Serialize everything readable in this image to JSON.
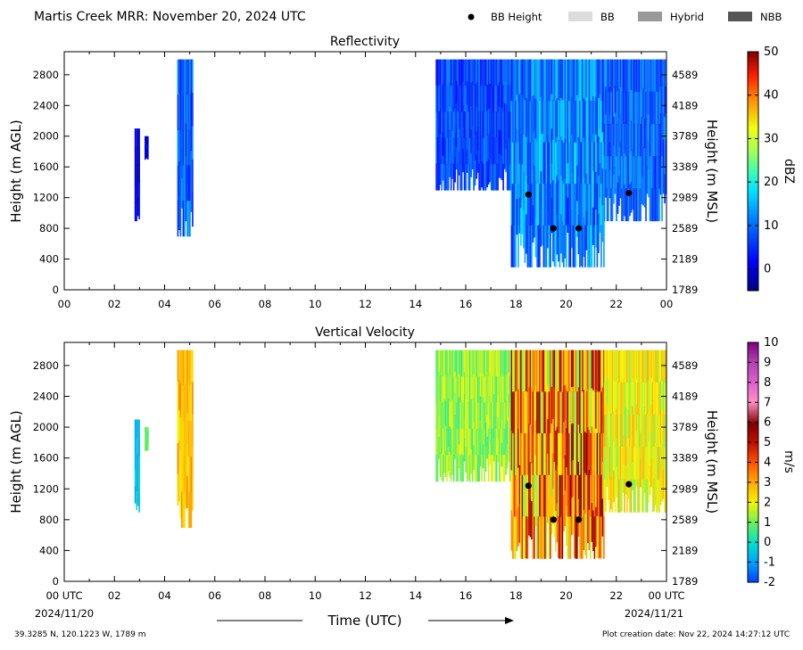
{
  "header": {
    "title": "Martis Creek MRR:  November 20, 2024 UTC",
    "legend": [
      {
        "label": "BB Height",
        "kind": "dot",
        "color": "#000000"
      },
      {
        "label": "BB",
        "kind": "patch",
        "color": "#dcdcdc"
      },
      {
        "label": "Hybrid",
        "kind": "patch",
        "color": "#999999"
      },
      {
        "label": "NBB",
        "kind": "patch",
        "color": "#555555"
      }
    ]
  },
  "footer": {
    "location": "39.3285 N, 120.1223 W, 1789 m",
    "created": "Plot creation date: Nov 22, 2024 14:27:12 UTC",
    "start_date": "2024/11/20",
    "end_date": "2024/11/21",
    "time_label": "Time (UTC)"
  },
  "chart_data": [
    {
      "type": "heatmap",
      "title": "Reflectivity",
      "ylabel": "Height (m AGL)",
      "ylabel_right": "Height (m MSL)",
      "xlim": [
        0,
        24
      ],
      "ylim": [
        0,
        3100
      ],
      "x_ticks": [
        "00",
        "02",
        "04",
        "06",
        "08",
        "10",
        "12",
        "14",
        "16",
        "18",
        "20",
        "22",
        "00"
      ],
      "y_ticks": [
        0,
        400,
        800,
        1200,
        1600,
        2000,
        2400,
        2800
      ],
      "y_ticks_right": [
        "1789",
        "2189",
        "2589",
        "2989",
        "3389",
        "3789",
        "4189",
        "4589"
      ],
      "colorbar": {
        "label": "dBZ",
        "min": -5,
        "max": 50,
        "ticks": [
          0,
          10,
          20,
          30,
          40,
          50
        ]
      },
      "echo_segments": [
        {
          "x_start": 2.8,
          "x_end": 3.0,
          "y_bottom": 900,
          "y_top": 2100,
          "value_range": [
            -3,
            3
          ]
        },
        {
          "x_start": 3.2,
          "x_end": 3.35,
          "y_bottom": 1700,
          "y_top": 2000,
          "value_range": [
            -3,
            3
          ]
        },
        {
          "x_start": 4.5,
          "x_end": 5.1,
          "y_bottom": 700,
          "y_top": 3000,
          "value_range": [
            3,
            14
          ]
        },
        {
          "x_start": 14.8,
          "x_end": 17.8,
          "y_bottom": 1300,
          "y_top": 3000,
          "value_range": [
            2,
            12
          ]
        },
        {
          "x_start": 17.8,
          "x_end": 21.5,
          "y_bottom": 300,
          "y_top": 3000,
          "value_range": [
            4,
            18
          ]
        },
        {
          "x_start": 21.5,
          "x_end": 24.0,
          "y_bottom": 900,
          "y_top": 3000,
          "value_range": [
            4,
            14
          ]
        }
      ],
      "bb_height": [
        {
          "x": 18.5,
          "y": 1240
        },
        {
          "x": 19.5,
          "y": 800
        },
        {
          "x": 20.5,
          "y": 800
        },
        {
          "x": 22.5,
          "y": 1260
        }
      ]
    },
    {
      "type": "heatmap",
      "title": "Vertical Velocity",
      "ylabel": "Height (m AGL)",
      "ylabel_right": "Height (m MSL)",
      "xlabel": "Time (UTC)",
      "xlim": [
        0,
        24
      ],
      "ylim": [
        0,
        3100
      ],
      "x_ticks": [
        "00 UTC",
        "02",
        "04",
        "06",
        "08",
        "10",
        "12",
        "14",
        "16",
        "18",
        "20",
        "22",
        "00 UTC"
      ],
      "y_ticks": [
        0,
        400,
        800,
        1200,
        1600,
        2000,
        2400,
        2800
      ],
      "y_ticks_right": [
        "1789",
        "2189",
        "2589",
        "2989",
        "3389",
        "3789",
        "4189",
        "4589"
      ],
      "colorbar": {
        "label": "m/s",
        "min": -2,
        "max": 10,
        "ticks": [
          -2,
          -1,
          0,
          1,
          2,
          3,
          4,
          5,
          6,
          7,
          8,
          9,
          10
        ]
      },
      "echo_segments": [
        {
          "x_start": 2.8,
          "x_end": 3.0,
          "y_bottom": 900,
          "y_top": 2100,
          "value_range": [
            -1,
            0
          ]
        },
        {
          "x_start": 3.2,
          "x_end": 3.35,
          "y_bottom": 1700,
          "y_top": 2000,
          "value_range": [
            0.5,
            1.2
          ]
        },
        {
          "x_start": 4.5,
          "x_end": 5.1,
          "y_bottom": 700,
          "y_top": 3000,
          "value_range": [
            2,
            3.5
          ]
        },
        {
          "x_start": 14.8,
          "x_end": 17.8,
          "y_bottom": 1300,
          "y_top": 3000,
          "value_range": [
            0.5,
            2
          ]
        },
        {
          "x_start": 17.8,
          "x_end": 21.5,
          "y_bottom": 300,
          "y_top": 3000,
          "value_range": [
            1,
            6
          ]
        },
        {
          "x_start": 21.5,
          "x_end": 24.0,
          "y_bottom": 900,
          "y_top": 3000,
          "value_range": [
            1,
            3
          ]
        }
      ],
      "bb_height": [
        {
          "x": 18.5,
          "y": 1240
        },
        {
          "x": 19.5,
          "y": 800
        },
        {
          "x": 20.5,
          "y": 800
        },
        {
          "x": 22.5,
          "y": 1260
        }
      ]
    }
  ]
}
